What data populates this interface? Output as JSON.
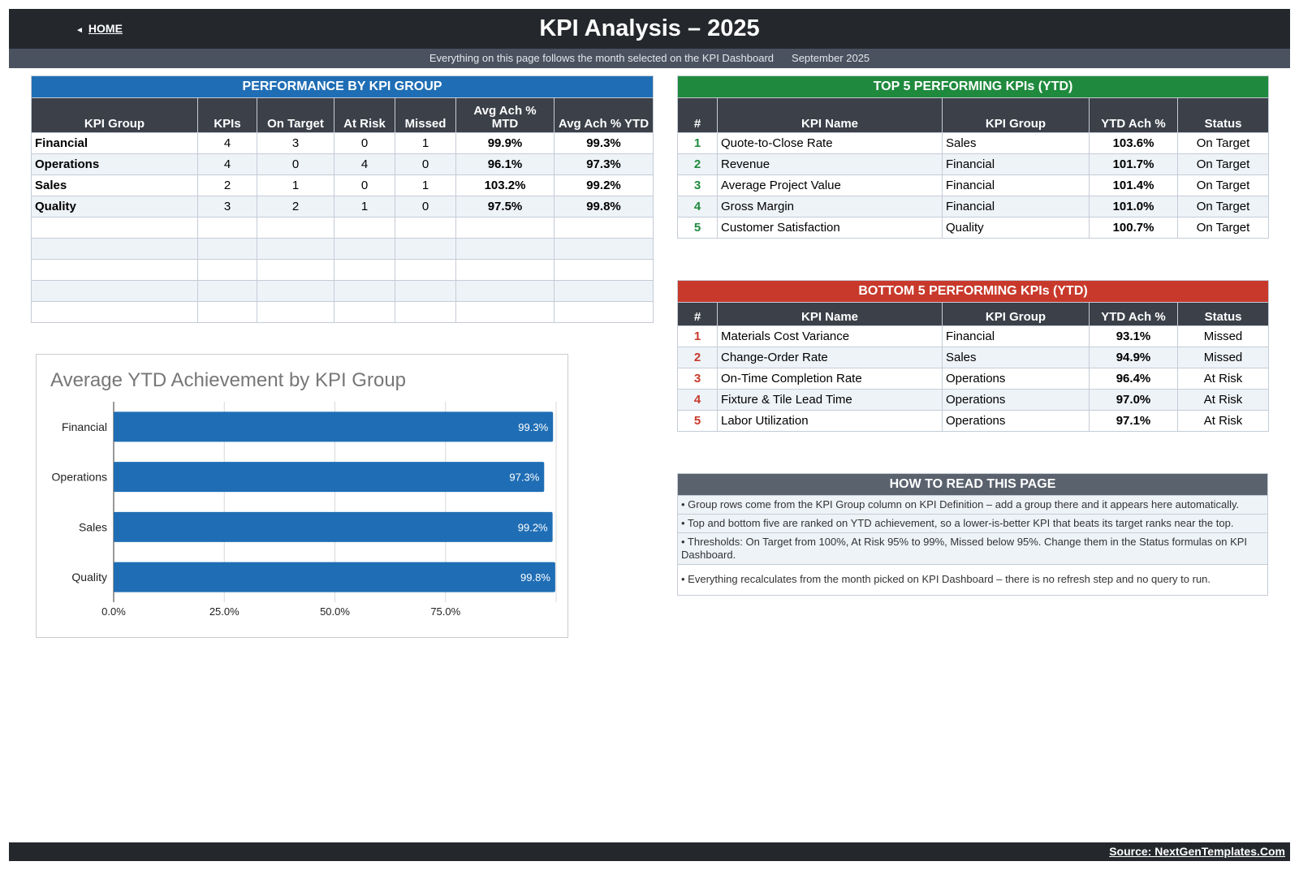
{
  "header": {
    "home_label": "HOME",
    "title": "KPI Analysis   –   2025",
    "subtitle": "Everything on this page follows the month selected on the KPI Dashboard",
    "month": "September 2025"
  },
  "colors": {
    "header_bg": "#24282d",
    "perf_band": "#1f6eb5",
    "top_band": "#1f8a3d",
    "bottom_band": "#c8392b",
    "howto_band": "#5a626e",
    "bar": "#1f6eb5"
  },
  "perf": {
    "title": "PERFORMANCE BY KPI GROUP",
    "columns": [
      "KPI Group",
      "KPIs",
      "On Target",
      "At Risk",
      "Missed",
      "Avg Ach % MTD",
      "Avg Ach % YTD"
    ],
    "rows": [
      [
        "Financial",
        "4",
        "3",
        "0",
        "1",
        "99.9%",
        "99.3%"
      ],
      [
        "Operations",
        "4",
        "0",
        "4",
        "0",
        "96.1%",
        "97.3%"
      ],
      [
        "Sales",
        "2",
        "1",
        "0",
        "1",
        "103.2%",
        "99.2%"
      ],
      [
        "Quality",
        "3",
        "2",
        "1",
        "0",
        "97.5%",
        "99.8%"
      ]
    ]
  },
  "top5": {
    "title": "TOP 5 PERFORMING KPIs  (YTD)",
    "columns": [
      "#",
      "KPI Name",
      "KPI Group",
      "YTD Ach %",
      "Status"
    ],
    "rows": [
      [
        "1",
        "Quote-to-Close Rate",
        "Sales",
        "103.6%",
        "On Target"
      ],
      [
        "2",
        "Revenue",
        "Financial",
        "101.7%",
        "On Target"
      ],
      [
        "3",
        "Average Project Value",
        "Financial",
        "101.4%",
        "On Target"
      ],
      [
        "4",
        "Gross Margin",
        "Financial",
        "101.0%",
        "On Target"
      ],
      [
        "5",
        "Customer Satisfaction",
        "Quality",
        "100.7%",
        "On Target"
      ]
    ]
  },
  "bottom5": {
    "title": "BOTTOM 5 PERFORMING KPIs  (YTD)",
    "columns": [
      "#",
      "KPI Name",
      "KPI Group",
      "YTD Ach %",
      "Status"
    ],
    "rows": [
      [
        "1",
        "Materials Cost Variance",
        "Financial",
        "93.1%",
        "Missed"
      ],
      [
        "2",
        "Change-Order Rate",
        "Sales",
        "94.9%",
        "Missed"
      ],
      [
        "3",
        "On-Time Completion Rate",
        "Operations",
        "96.4%",
        "At Risk"
      ],
      [
        "4",
        "Fixture & Tile Lead Time",
        "Operations",
        "97.0%",
        "At Risk"
      ],
      [
        "5",
        "Labor Utilization",
        "Operations",
        "97.1%",
        "At Risk"
      ]
    ]
  },
  "howto": {
    "title": "HOW TO READ THIS PAGE",
    "items": [
      "Group rows come from the KPI Group column on KPI Definition – add a group there and it appears here automatically.",
      "Top and bottom five are ranked on YTD achievement, so a lower-is-better KPI that beats its target ranks near the top.",
      "Thresholds: On Target from 100%, At Risk 95% to 99%, Missed below 95%. Change them in the Status formulas on KPI Dashboard.",
      "Everything recalculates from the month picked on KPI Dashboard – there is no refresh step and no query to run."
    ]
  },
  "chart_data": {
    "type": "bar",
    "orientation": "horizontal",
    "title": "Average YTD Achievement by KPI Group",
    "categories": [
      "Financial",
      "Operations",
      "Sales",
      "Quality"
    ],
    "values": [
      99.3,
      97.3,
      99.2,
      99.8
    ],
    "value_labels": [
      "99.3%",
      "97.3%",
      "99.2%",
      "99.8%"
    ],
    "xlim": [
      0,
      100
    ],
    "x_ticks": [
      "0.0%",
      "25.0%",
      "50.0%",
      "75.0%"
    ],
    "grid": true
  },
  "footer": {
    "source": "Source: NextGenTemplates.Com"
  }
}
